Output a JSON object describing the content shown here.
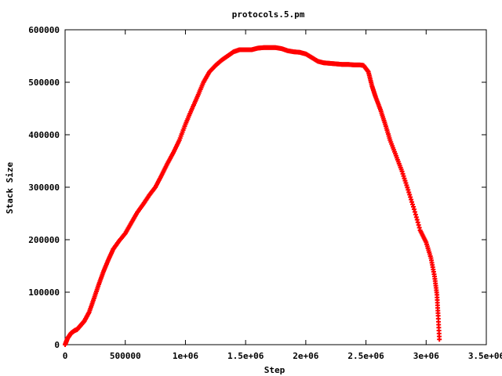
{
  "chart_data": {
    "type": "scatter",
    "title": "protocols.5.pm",
    "xlabel": "Step",
    "ylabel": "Stack Size",
    "xlim": [
      0,
      3500000
    ],
    "ylim": [
      0,
      600000
    ],
    "x_ticks": [
      {
        "value": 0,
        "label": "0"
      },
      {
        "value": 500000,
        "label": "500000"
      },
      {
        "value": 1000000,
        "label": "1e+06"
      },
      {
        "value": 1500000,
        "label": "1.5e+06"
      },
      {
        "value": 2000000,
        "label": "2e+06"
      },
      {
        "value": 2500000,
        "label": "2.5e+06"
      },
      {
        "value": 3000000,
        "label": "3e+06"
      },
      {
        "value": 3500000,
        "label": "3.5e+06"
      }
    ],
    "y_ticks": [
      {
        "value": 0,
        "label": "0"
      },
      {
        "value": 100000,
        "label": "100000"
      },
      {
        "value": 200000,
        "label": "200000"
      },
      {
        "value": 300000,
        "label": "300000"
      },
      {
        "value": 400000,
        "label": "400000"
      },
      {
        "value": 500000,
        "label": "500000"
      },
      {
        "value": 600000,
        "label": "600000"
      }
    ],
    "grid": false,
    "legend": "none",
    "marker": "plus",
    "color": "#ff0000",
    "x": [
      0,
      20000,
      50000,
      80000,
      100000,
      130000,
      160000,
      200000,
      240000,
      280000,
      320000,
      360000,
      400000,
      450000,
      500000,
      550000,
      600000,
      650000,
      700000,
      750000,
      800000,
      850000,
      900000,
      950000,
      1000000,
      1050000,
      1100000,
      1150000,
      1200000,
      1250000,
      1300000,
      1350000,
      1400000,
      1450000,
      1500000,
      1550000,
      1600000,
      1650000,
      1700000,
      1750000,
      1800000,
      1850000,
      1900000,
      1950000,
      2000000,
      2050000,
      2100000,
      2150000,
      2200000,
      2250000,
      2300000,
      2350000,
      2400000,
      2450000,
      2480000,
      2520000,
      2550000,
      2580000,
      2620000,
      2660000,
      2700000,
      2750000,
      2800000,
      2850000,
      2900000,
      2950000,
      3000000,
      3040000,
      3070000,
      3090000,
      3100000,
      3110000
    ],
    "y": [
      0,
      12000,
      22000,
      27000,
      29000,
      37000,
      45000,
      62000,
      88000,
      115000,
      140000,
      162000,
      182000,
      198000,
      212000,
      232000,
      252000,
      268000,
      285000,
      300000,
      322000,
      345000,
      366000,
      390000,
      420000,
      447000,
      473000,
      500000,
      520000,
      532000,
      542000,
      550000,
      558000,
      562000,
      562000,
      562000,
      565000,
      566000,
      566000,
      566000,
      564000,
      560000,
      558000,
      557000,
      554000,
      547000,
      540000,
      537000,
      536000,
      535000,
      534000,
      534000,
      533000,
      533000,
      532000,
      520000,
      493000,
      472000,
      448000,
      420000,
      390000,
      360000,
      330000,
      295000,
      258000,
      218000,
      195000,
      165000,
      130000,
      95000,
      55000,
      10000
    ]
  }
}
